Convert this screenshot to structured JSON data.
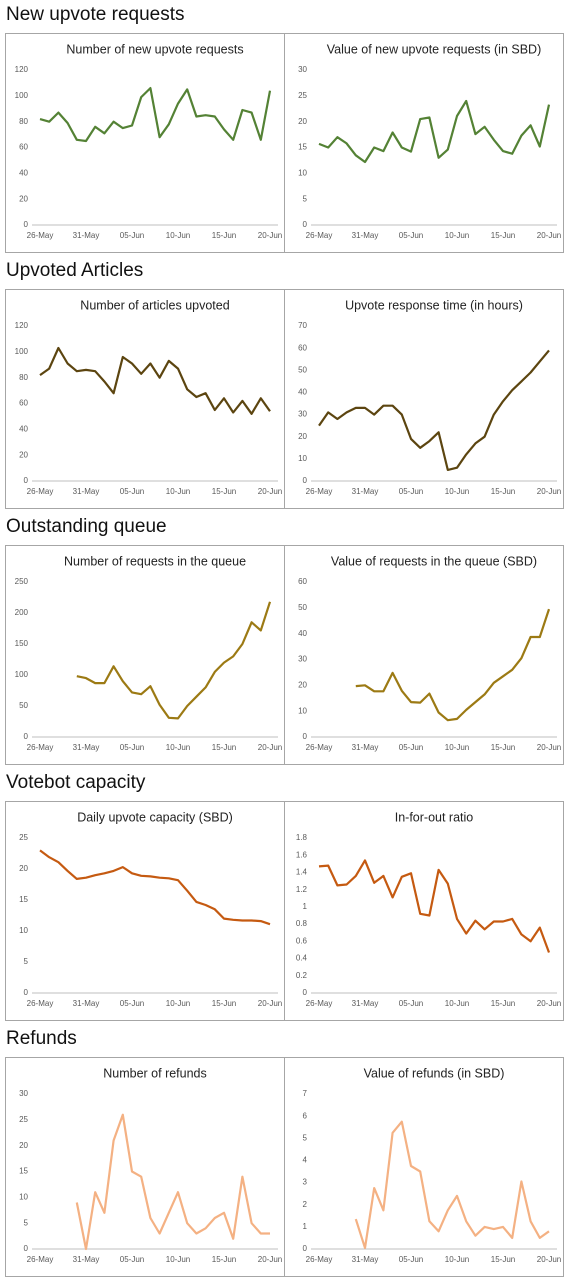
{
  "sections": [
    {
      "heading": "New upvote requests"
    },
    {
      "heading": "Upvoted Articles"
    },
    {
      "heading": "Outstanding queue"
    },
    {
      "heading": "Votebot capacity"
    },
    {
      "heading": "Refunds"
    }
  ],
  "chart_data": [
    {
      "type": "line",
      "title": "Number of new upvote requests",
      "color": "#548235",
      "ylim": [
        0,
        120
      ],
      "yticks": [
        0,
        20,
        40,
        60,
        80,
        100,
        120
      ],
      "grid": false,
      "categories": [
        "26-May",
        null,
        null,
        null,
        null,
        "31-May",
        null,
        null,
        null,
        null,
        "05-Jun",
        null,
        null,
        null,
        null,
        "10-Jun",
        null,
        null,
        null,
        null,
        "15-Jun",
        null,
        null,
        null,
        null,
        "20-Jun"
      ],
      "values": [
        82,
        80,
        87,
        79,
        66,
        65,
        76,
        71,
        80,
        75,
        77,
        99,
        106,
        68,
        78,
        94,
        105,
        84,
        85,
        84,
        74,
        66,
        89,
        87,
        66,
        104
      ]
    },
    {
      "type": "line",
      "title": "Value of new upvote requests (in SBD)",
      "color": "#548235",
      "ylim": [
        0,
        30
      ],
      "yticks": [
        0,
        5,
        10,
        15,
        20,
        25,
        30
      ],
      "grid": false,
      "categories": [
        "26-May",
        null,
        null,
        null,
        null,
        "31-May",
        null,
        null,
        null,
        null,
        "05-Jun",
        null,
        null,
        null,
        null,
        "10-Jun",
        null,
        null,
        null,
        null,
        "15-Jun",
        null,
        null,
        null,
        null,
        "20-Jun"
      ],
      "values": [
        15.7,
        15,
        17,
        15.8,
        13.5,
        12.2,
        15,
        14.3,
        17.9,
        15,
        14.2,
        20.5,
        20.8,
        13,
        14.6,
        21.1,
        24,
        17.6,
        19,
        16.5,
        14.3,
        13.8,
        17.3,
        19.3,
        15.2,
        23.3
      ]
    },
    {
      "type": "line",
      "title": "Number of articles upvoted",
      "color": "#5c4510",
      "ylim": [
        0,
        120
      ],
      "yticks": [
        0,
        20,
        40,
        60,
        80,
        100,
        120
      ],
      "grid": false,
      "categories": [
        "26-May",
        null,
        null,
        null,
        null,
        "31-May",
        null,
        null,
        null,
        null,
        "05-Jun",
        null,
        null,
        null,
        null,
        "10-Jun",
        null,
        null,
        null,
        null,
        "15-Jun",
        null,
        null,
        null,
        null,
        "20-Jun"
      ],
      "values": [
        82,
        87,
        103,
        91,
        85,
        86,
        85,
        77,
        68,
        96,
        91,
        83,
        91,
        80,
        93,
        87,
        71,
        65,
        68,
        55,
        64,
        53,
        62,
        52,
        64,
        54
      ]
    },
    {
      "type": "line",
      "title": "Upvote response time (in hours)",
      "color": "#5c4510",
      "ylim": [
        0,
        70
      ],
      "yticks": [
        0,
        10,
        20,
        30,
        40,
        50,
        60,
        70
      ],
      "grid": false,
      "categories": [
        "26-May",
        null,
        null,
        null,
        null,
        "31-May",
        null,
        null,
        null,
        null,
        "05-Jun",
        null,
        null,
        null,
        null,
        "10-Jun",
        null,
        null,
        null,
        null,
        "15-Jun",
        null,
        null,
        null,
        null,
        "20-Jun"
      ],
      "values": [
        25,
        31,
        28,
        31,
        33,
        33,
        30,
        34,
        34,
        30,
        19,
        15,
        18,
        22,
        5,
        6,
        12,
        17,
        20,
        30,
        36,
        41,
        45,
        49,
        54,
        59
      ]
    },
    {
      "type": "line",
      "title": "Number of requests in the queue",
      "color": "#9c7a14",
      "ylim": [
        0,
        250
      ],
      "yticks": [
        0,
        50,
        100,
        150,
        200,
        250
      ],
      "grid": false,
      "categories": [
        "26-May",
        null,
        null,
        null,
        null,
        "31-May",
        null,
        null,
        null,
        null,
        "05-Jun",
        null,
        null,
        null,
        null,
        "10-Jun",
        null,
        null,
        null,
        null,
        "15-Jun",
        null,
        null,
        null,
        null,
        "20-Jun"
      ],
      "values": [
        null,
        null,
        null,
        null,
        98,
        95,
        87,
        87,
        114,
        90,
        72,
        69,
        82,
        52,
        31,
        30,
        50,
        65,
        80,
        105,
        120,
        130,
        150,
        185,
        172,
        218
      ]
    },
    {
      "type": "line",
      "title": "Value of requests in the queue (SBD)",
      "color": "#9c7a14",
      "ylim": [
        0,
        60
      ],
      "yticks": [
        0,
        10,
        20,
        30,
        40,
        50,
        60
      ],
      "grid": false,
      "categories": [
        "26-May",
        null,
        null,
        null,
        null,
        "31-May",
        null,
        null,
        null,
        null,
        "05-Jun",
        null,
        null,
        null,
        null,
        "10-Jun",
        null,
        null,
        null,
        null,
        "15-Jun",
        null,
        null,
        null,
        null,
        "20-Jun"
      ],
      "values": [
        null,
        null,
        null,
        null,
        19.7,
        20,
        17.7,
        17.7,
        24.8,
        17.9,
        13.5,
        13.3,
        16.8,
        9.5,
        6.5,
        7,
        10.5,
        13.5,
        16.5,
        21,
        23.5,
        26,
        30.5,
        38.7,
        38.7,
        49.5
      ]
    },
    {
      "type": "line",
      "title": "Daily upvote capacity (SBD)",
      "color": "#c55a11",
      "ylim": [
        0,
        25
      ],
      "yticks": [
        0,
        5,
        10,
        15,
        20,
        25
      ],
      "grid": false,
      "categories": [
        "26-May",
        null,
        null,
        null,
        null,
        "31-May",
        null,
        null,
        null,
        null,
        "05-Jun",
        null,
        null,
        null,
        null,
        "10-Jun",
        null,
        null,
        null,
        null,
        "15-Jun",
        null,
        null,
        null,
        null,
        "20-Jun"
      ],
      "values": [
        23,
        21.9,
        21.1,
        19.7,
        18.4,
        18.6,
        19,
        19.3,
        19.7,
        20.3,
        19.3,
        18.9,
        18.8,
        18.6,
        18.5,
        18.2,
        16.5,
        14.7,
        14.2,
        13.5,
        12,
        11.8,
        11.7,
        11.7,
        11.6,
        11.1
      ]
    },
    {
      "type": "line",
      "title": "In-for-out ratio",
      "color": "#c55a11",
      "ylim": [
        0,
        1.8
      ],
      "yticks": [
        0,
        0.2,
        0.4,
        0.6,
        0.8,
        1,
        1.2,
        1.4,
        1.6,
        1.8
      ],
      "grid": false,
      "categories": [
        "26-May",
        null,
        null,
        null,
        null,
        "31-May",
        null,
        null,
        null,
        null,
        "05-Jun",
        null,
        null,
        null,
        null,
        "10-Jun",
        null,
        null,
        null,
        null,
        "15-Jun",
        null,
        null,
        null,
        null,
        "20-Jun"
      ],
      "values": [
        1.47,
        1.48,
        1.25,
        1.26,
        1.36,
        1.54,
        1.28,
        1.36,
        1.11,
        1.35,
        1.39,
        0.92,
        0.9,
        1.43,
        1.27,
        0.86,
        0.69,
        0.84,
        0.74,
        0.83,
        0.83,
        0.86,
        0.68,
        0.6,
        0.76,
        0.47
      ]
    },
    {
      "type": "line",
      "title": "Number of refunds",
      "color": "#f4b183",
      "ylim": [
        0,
        30
      ],
      "yticks": [
        0,
        5,
        10,
        15,
        20,
        25,
        30
      ],
      "grid": false,
      "categories": [
        "26-May",
        null,
        null,
        null,
        null,
        "31-May",
        null,
        null,
        null,
        null,
        "05-Jun",
        null,
        null,
        null,
        null,
        "10-Jun",
        null,
        null,
        null,
        null,
        "15-Jun",
        null,
        null,
        null,
        null,
        "20-Jun"
      ],
      "values": [
        null,
        null,
        null,
        null,
        9,
        0,
        11,
        7,
        21,
        26,
        15,
        14,
        6,
        3,
        7,
        11,
        5,
        3,
        4,
        6,
        7,
        2,
        14,
        5,
        3,
        3
      ]
    },
    {
      "type": "line",
      "title": "Value of refunds (in SBD)",
      "color": "#f4b183",
      "ylim": [
        0,
        7
      ],
      "yticks": [
        0,
        1,
        2,
        3,
        4,
        5,
        6,
        7
      ],
      "grid": false,
      "categories": [
        "26-May",
        null,
        null,
        null,
        null,
        "31-May",
        null,
        null,
        null,
        null,
        "05-Jun",
        null,
        null,
        null,
        null,
        "10-Jun",
        null,
        null,
        null,
        null,
        "15-Jun",
        null,
        null,
        null,
        null,
        "20-Jun"
      ],
      "values": [
        null,
        null,
        null,
        null,
        1.35,
        0.05,
        2.75,
        1.75,
        5.25,
        5.75,
        3.75,
        3.5,
        1.25,
        0.8,
        1.75,
        2.4,
        1.25,
        0.6,
        1,
        0.9,
        1,
        0.5,
        3.05,
        1.25,
        0.5,
        0.8
      ]
    }
  ]
}
